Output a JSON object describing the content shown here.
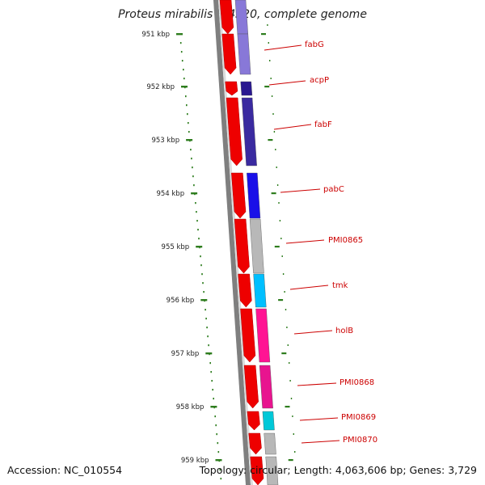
{
  "title": "Proteus mirabilis HI4320, complete genome",
  "footer": {
    "accession": "Accession: NC_010554",
    "topology": "Topology: circular; Length: 4,063,606 bp; Genes: 3,729"
  },
  "colors": {
    "backbone": "#8a8a8a",
    "tick": "#2e7d1e",
    "gene_arrow": "#ee0000",
    "label": "#cc0000",
    "leader": "#cc0000"
  },
  "chart_data": {
    "type": "genome_map",
    "tick_labels": [
      "951 kbp",
      "952 kbp",
      "953 kbp",
      "954 kbp",
      "955 kbp",
      "956 kbp",
      "957 kbp",
      "958 kbp",
      "959 kbp"
    ],
    "genes": [
      {
        "name": "fabG",
        "color": "#8878d8"
      },
      {
        "name": "acpP",
        "color": "#2a1890"
      },
      {
        "name": "fabF",
        "color": "#3a2aa0"
      },
      {
        "name": "pabC",
        "color": "#1a10e8"
      },
      {
        "name": "PMI0865",
        "color": "#b8b8b8"
      },
      {
        "name": "tmk",
        "color": "#00bfff"
      },
      {
        "name": "holB",
        "color": "#ff1493"
      },
      {
        "name": "PMI0868",
        "color": "#e8148f"
      },
      {
        "name": "PMI0869",
        "color": "#00c8d8"
      },
      {
        "name": "PMI0870",
        "color": "#b8b8b8"
      }
    ]
  }
}
